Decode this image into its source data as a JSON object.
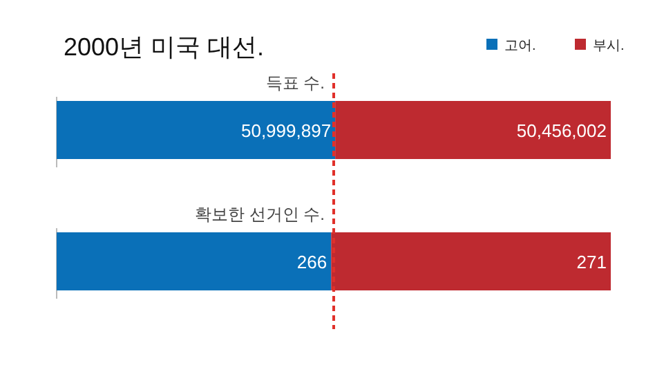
{
  "chart_data": [
    {
      "type": "bar",
      "title": "2000년 미국 대선.",
      "orientation": "horizontal",
      "stacked": true,
      "categories": [
        "득표 수."
      ],
      "series": [
        {
          "name": "고어.",
          "color": "#0a70b8",
          "values": [
            50999897
          ],
          "value_labels": [
            "50,999,897"
          ]
        },
        {
          "name": "부시.",
          "color": "#be2a30",
          "values": [
            50456002
          ],
          "value_labels": [
            "50,456,002"
          ]
        }
      ],
      "legend": "top right"
    },
    {
      "type": "bar",
      "orientation": "horizontal",
      "stacked": true,
      "categories": [
        "확보한 선거인 수."
      ],
      "series": [
        {
          "color": "#0a70b8",
          "values": [
            266
          ]
        },
        {
          "color": "#be2a30",
          "values": [
            271
          ]
        }
      ],
      "data_labels": true,
      "ref_lines": [
        {
          "axis": "x",
          "value": 268.5,
          "color": "#e0302a",
          "line_style": "dashed"
        }
      ]
    }
  ]
}
